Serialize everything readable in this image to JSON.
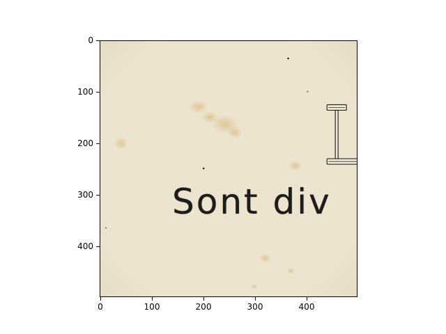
{
  "image": {
    "visible_text": "Sont div",
    "paper_color": "#ede4d0",
    "ink_color": "#1e1c1a",
    "stain_color": "#d9b87a"
  },
  "axes": {
    "x_ticks": [
      "0",
      "100",
      "200",
      "300",
      "400"
    ],
    "y_ticks": [
      "0",
      "100",
      "200",
      "300",
      "400"
    ],
    "x_range": [
      0,
      500
    ],
    "y_range": [
      500,
      0
    ]
  }
}
